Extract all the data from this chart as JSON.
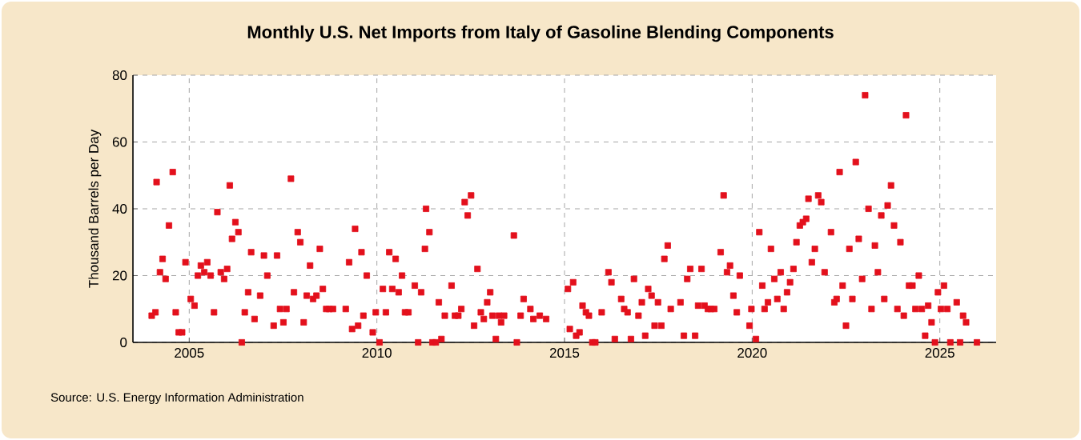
{
  "chart_data": {
    "type": "scatter",
    "title": "Monthly U.S. Net Imports from Italy of Gasoline Blending Components",
    "ylabel": "Thousand Barrels per Day",
    "annotations": [
      "Source: U.S. Energy Information Administration"
    ],
    "x": [
      2004.0,
      2004.1,
      2004.13,
      2004.22,
      2004.29,
      2004.37,
      2004.46,
      2004.56,
      2004.64,
      2004.72,
      2004.81,
      2004.9,
      2005.04,
      2005.14,
      2005.23,
      2005.31,
      2005.4,
      2005.48,
      2005.57,
      2005.66,
      2005.75,
      2005.84,
      2005.93,
      2006.01,
      2006.08,
      2006.14,
      2006.23,
      2006.31,
      2006.4,
      2006.48,
      2006.57,
      2006.65,
      2006.74,
      2006.89,
      2006.99,
      2007.08,
      2007.25,
      2007.34,
      2007.42,
      2007.51,
      2007.59,
      2007.71,
      2007.79,
      2007.89,
      2007.96,
      2008.05,
      2008.13,
      2008.22,
      2008.3,
      2008.39,
      2008.48,
      2008.56,
      2008.65,
      2008.73,
      2008.83,
      2009.17,
      2009.26,
      2009.34,
      2009.42,
      2009.5,
      2009.59,
      2009.64,
      2009.73,
      2009.89,
      2009.97,
      2010.07,
      2010.16,
      2010.24,
      2010.33,
      2010.41,
      2010.5,
      2010.58,
      2010.67,
      2010.75,
      2010.84,
      2011.01,
      2011.1,
      2011.18,
      2011.28,
      2011.31,
      2011.4,
      2011.48,
      2011.57,
      2011.65,
      2011.72,
      2011.81,
      2011.99,
      2012.08,
      2012.17,
      2012.25,
      2012.34,
      2012.42,
      2012.51,
      2012.59,
      2012.68,
      2012.77,
      2012.85,
      2012.94,
      2013.02,
      2013.08,
      2013.17,
      2013.25,
      2013.31,
      2013.39,
      2013.65,
      2013.73,
      2013.83,
      2013.91,
      2014.09,
      2014.17,
      2014.34,
      2014.51,
      2015.09,
      2015.14,
      2015.23,
      2015.31,
      2015.4,
      2015.48,
      2015.57,
      2015.65,
      2015.74,
      2015.82,
      2015.99,
      2016.17,
      2016.25,
      2016.34,
      2016.51,
      2016.59,
      2016.68,
      2016.77,
      2016.85,
      2016.97,
      2017.06,
      2017.15,
      2017.23,
      2017.32,
      2017.4,
      2017.49,
      2017.58,
      2017.66,
      2017.75,
      2017.83,
      2018.09,
      2018.18,
      2018.27,
      2018.35,
      2018.48,
      2018.56,
      2018.65,
      2018.73,
      2018.82,
      2018.9,
      2018.99,
      2019.16,
      2019.24,
      2019.33,
      2019.41,
      2019.5,
      2019.59,
      2019.67,
      2019.93,
      2019.98,
      2020.1,
      2020.19,
      2020.27,
      2020.33,
      2020.42,
      2020.5,
      2020.59,
      2020.67,
      2020.76,
      2020.84,
      2020.93,
      2021.01,
      2021.1,
      2021.18,
      2021.27,
      2021.35,
      2021.44,
      2021.5,
      2021.59,
      2021.67,
      2021.76,
      2021.84,
      2021.93,
      2022.1,
      2022.19,
      2022.25,
      2022.33,
      2022.41,
      2022.5,
      2022.59,
      2022.67,
      2022.76,
      2022.84,
      2022.93,
      2023.01,
      2023.1,
      2023.18,
      2023.27,
      2023.35,
      2023.44,
      2023.52,
      2023.61,
      2023.7,
      2023.78,
      2023.87,
      2023.95,
      2024.04,
      2024.1,
      2024.18,
      2024.27,
      2024.35,
      2024.44,
      2024.52,
      2024.61,
      2024.69,
      2024.78,
      2024.87,
      2024.95,
      2025.03,
      2025.11,
      2025.2,
      2025.28,
      2025.45,
      2025.54,
      2025.62,
      2025.7,
      2025.99
    ],
    "values": [
      8,
      9,
      48,
      21,
      25,
      19,
      35,
      51,
      9,
      3,
      3,
      24,
      13,
      11,
      20,
      23,
      21,
      24,
      20,
      9,
      39,
      21,
      19,
      22,
      47,
      31,
      36,
      33,
      0,
      9,
      15,
      27,
      7,
      14,
      26,
      20,
      5,
      26,
      10,
      6,
      10,
      49,
      15,
      33,
      30,
      6,
      14,
      23,
      13,
      14,
      28,
      16,
      10,
      10,
      10,
      10,
      24,
      4,
      34,
      5,
      27,
      8,
      20,
      3,
      9,
      0,
      16,
      9,
      27,
      16,
      25,
      15,
      20,
      9,
      9,
      17,
      0,
      15,
      28,
      40,
      33,
      0,
      0,
      12,
      1,
      8,
      17,
      8,
      8,
      10,
      42,
      38,
      44,
      5,
      22,
      9,
      7,
      12,
      15,
      8,
      1,
      8,
      6,
      8,
      32,
      0,
      8,
      13,
      10,
      7,
      8,
      7,
      16,
      4,
      18,
      2,
      3,
      11,
      9,
      8,
      0,
      0,
      9,
      21,
      18,
      1,
      13,
      10,
      9,
      1,
      19,
      8,
      12,
      2,
      16,
      14,
      5,
      12,
      5,
      25,
      29,
      10,
      12,
      2,
      19,
      22,
      2,
      11,
      22,
      11,
      10,
      10,
      10,
      27,
      44,
      21,
      23,
      14,
      9,
      20,
      5,
      10,
      1,
      33,
      17,
      10,
      12,
      28,
      19,
      13,
      21,
      10,
      15,
      18,
      22,
      30,
      35,
      36,
      37,
      43,
      24,
      28,
      44,
      42,
      21,
      33,
      12,
      13,
      51,
      17,
      5,
      28,
      13,
      54,
      31,
      19,
      74,
      40,
      10,
      29,
      21,
      38,
      13,
      41,
      47,
      35,
      10,
      30,
      8,
      68,
      17,
      17,
      10,
      20,
      10,
      2,
      11,
      6,
      0,
      15,
      10,
      17,
      10,
      0,
      12,
      0,
      8,
      6,
      0
    ],
    "color": "#e3101c",
    "marker": "square",
    "grid": true,
    "xlim": [
      2003.5,
      2026.5
    ],
    "xticks": [
      2005,
      2010,
      2015,
      2020,
      2025
    ],
    "ylim": [
      0,
      80
    ],
    "yticks": [
      0,
      20,
      40,
      60,
      80
    ]
  }
}
